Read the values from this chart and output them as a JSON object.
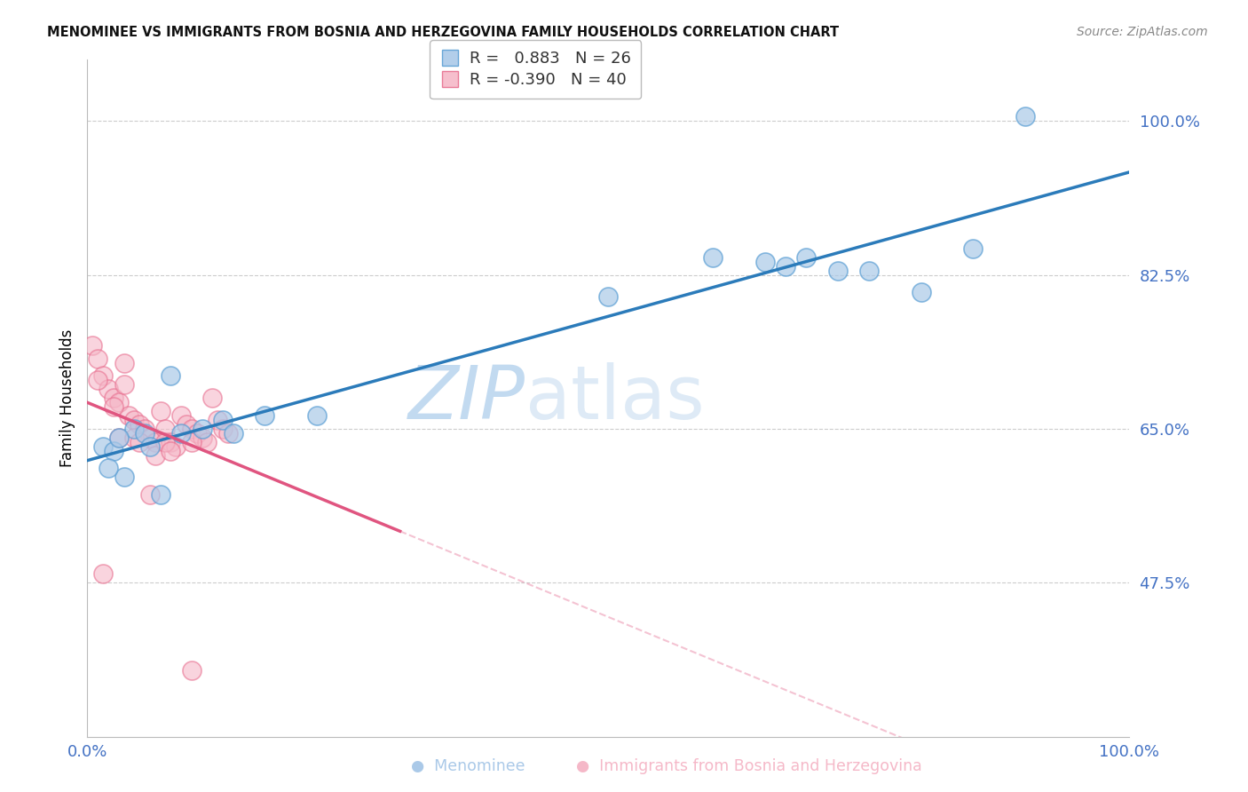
{
  "title": "MENOMINEE VS IMMIGRANTS FROM BOSNIA AND HERZEGOVINA FAMILY HOUSEHOLDS CORRELATION CHART",
  "source": "Source: ZipAtlas.com",
  "ylabel": "Family Households",
  "ytick_vals": [
    47.5,
    65.0,
    82.5,
    100.0
  ],
  "ytick_labels": [
    "47.5%",
    "65.0%",
    "82.5%",
    "100.0%"
  ],
  "xmin": 0.0,
  "xmax": 100.0,
  "ymin": 30.0,
  "ymax": 107.0,
  "legend_blue_R": "0.883",
  "legend_blue_N": "26",
  "legend_pink_R": "-0.390",
  "legend_pink_N": "40",
  "blue_face": "#aac9e8",
  "blue_edge": "#5b9fd4",
  "pink_face": "#f5b8c8",
  "pink_edge": "#e87090",
  "line_blue": "#2b7bba",
  "line_pink": "#e05580",
  "tick_color": "#4472c4",
  "blue_x": [
    1.5,
    2.5,
    3.5,
    4.5,
    5.5,
    7.0,
    9.0,
    11.0,
    13.0,
    17.0,
    22.0,
    50.0,
    60.0,
    65.0,
    67.0,
    69.0,
    72.0,
    75.0,
    80.0,
    85.0,
    90.0,
    3.0,
    6.0,
    14.0,
    2.0,
    8.0
  ],
  "blue_y": [
    63.0,
    62.5,
    59.5,
    65.0,
    64.5,
    57.5,
    64.5,
    65.0,
    66.0,
    66.5,
    66.5,
    80.0,
    84.5,
    84.0,
    83.5,
    84.5,
    83.0,
    83.0,
    80.5,
    85.5,
    100.5,
    64.0,
    63.0,
    64.5,
    60.5,
    71.0
  ],
  "pink_x": [
    0.5,
    1.0,
    1.5,
    2.0,
    2.5,
    3.0,
    3.5,
    4.0,
    4.5,
    5.0,
    5.5,
    6.0,
    6.5,
    7.0,
    7.5,
    8.0,
    8.5,
    9.0,
    9.5,
    10.0,
    10.5,
    11.0,
    11.5,
    12.0,
    12.5,
    13.0,
    13.5,
    3.0,
    4.5,
    6.5,
    7.5,
    2.5,
    1.0,
    5.0,
    8.0,
    3.5,
    10.0,
    1.5,
    6.0,
    10.0
  ],
  "pink_y": [
    74.5,
    73.0,
    71.0,
    69.5,
    68.5,
    68.0,
    72.5,
    66.5,
    66.0,
    65.5,
    65.0,
    64.0,
    63.5,
    67.0,
    65.0,
    63.5,
    63.0,
    66.5,
    65.5,
    65.0,
    64.5,
    64.0,
    63.5,
    68.5,
    66.0,
    65.0,
    64.5,
    64.0,
    64.0,
    62.0,
    63.5,
    67.5,
    70.5,
    63.5,
    62.5,
    70.0,
    63.5,
    48.5,
    57.5,
    37.5
  ],
  "pink_solid_end_x": 30.0,
  "blue_line_x0": 0.0,
  "blue_line_x1": 100.0
}
